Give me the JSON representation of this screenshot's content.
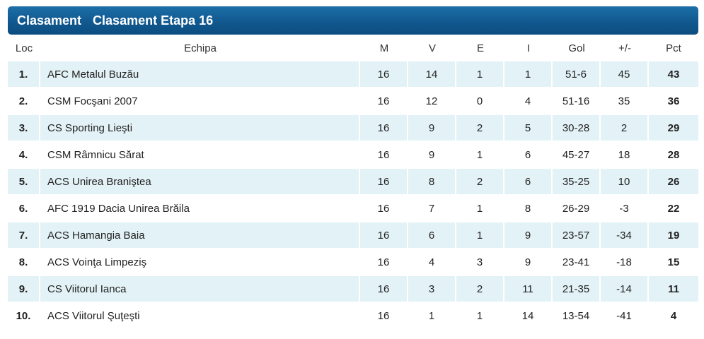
{
  "header": {
    "title": "Clasament",
    "subtitle": "Clasament Etapa 16"
  },
  "columns": {
    "loc": "Loc",
    "team": "Echipa",
    "m": "M",
    "v": "V",
    "e": "E",
    "i": "I",
    "gol": "Gol",
    "diff": "+/-",
    "pct": "Pct"
  },
  "rows": [
    {
      "loc": "1.",
      "team": "AFC Metalul Buzău",
      "m": "16",
      "v": "14",
      "e": "1",
      "i": "1",
      "gol": "51-6",
      "diff": "45",
      "pct": "43"
    },
    {
      "loc": "2.",
      "team": "CSM Focşani 2007",
      "m": "16",
      "v": "12",
      "e": "0",
      "i": "4",
      "gol": "51-16",
      "diff": "35",
      "pct": "36"
    },
    {
      "loc": "3.",
      "team": "CS Sporting Lieşti",
      "m": "16",
      "v": "9",
      "e": "2",
      "i": "5",
      "gol": "30-28",
      "diff": "2",
      "pct": "29"
    },
    {
      "loc": "4.",
      "team": "CSM Râmnicu Sărat",
      "m": "16",
      "v": "9",
      "e": "1",
      "i": "6",
      "gol": "45-27",
      "diff": "18",
      "pct": "28"
    },
    {
      "loc": "5.",
      "team": "ACS Unirea Braniştea",
      "m": "16",
      "v": "8",
      "e": "2",
      "i": "6",
      "gol": "35-25",
      "diff": "10",
      "pct": "26"
    },
    {
      "loc": "6.",
      "team": "AFC 1919 Dacia Unirea Brăila",
      "m": "16",
      "v": "7",
      "e": "1",
      "i": "8",
      "gol": "26-29",
      "diff": "-3",
      "pct": "22"
    },
    {
      "loc": "7.",
      "team": "ACS Hamangia Baia",
      "m": "16",
      "v": "6",
      "e": "1",
      "i": "9",
      "gol": "23-57",
      "diff": "-34",
      "pct": "19"
    },
    {
      "loc": "8.",
      "team": "ACS Voinţa Limpeziş",
      "m": "16",
      "v": "4",
      "e": "3",
      "i": "9",
      "gol": "23-41",
      "diff": "-18",
      "pct": "15"
    },
    {
      "loc": "9.",
      "team": "CS Viitorul Ianca",
      "m": "16",
      "v": "3",
      "e": "2",
      "i": "11",
      "gol": "21-35",
      "diff": "-14",
      "pct": "11"
    },
    {
      "loc": "10.",
      "team": "ACS Viitorul Şuţeşti",
      "m": "16",
      "v": "1",
      "e": "1",
      "i": "14",
      "gol": "13-54",
      "diff": "-41",
      "pct": "4"
    }
  ],
  "colors": {
    "header_bg": "#11598f",
    "row_alt_bg": "#e3f2f6",
    "row_bg": "#ffffff"
  }
}
